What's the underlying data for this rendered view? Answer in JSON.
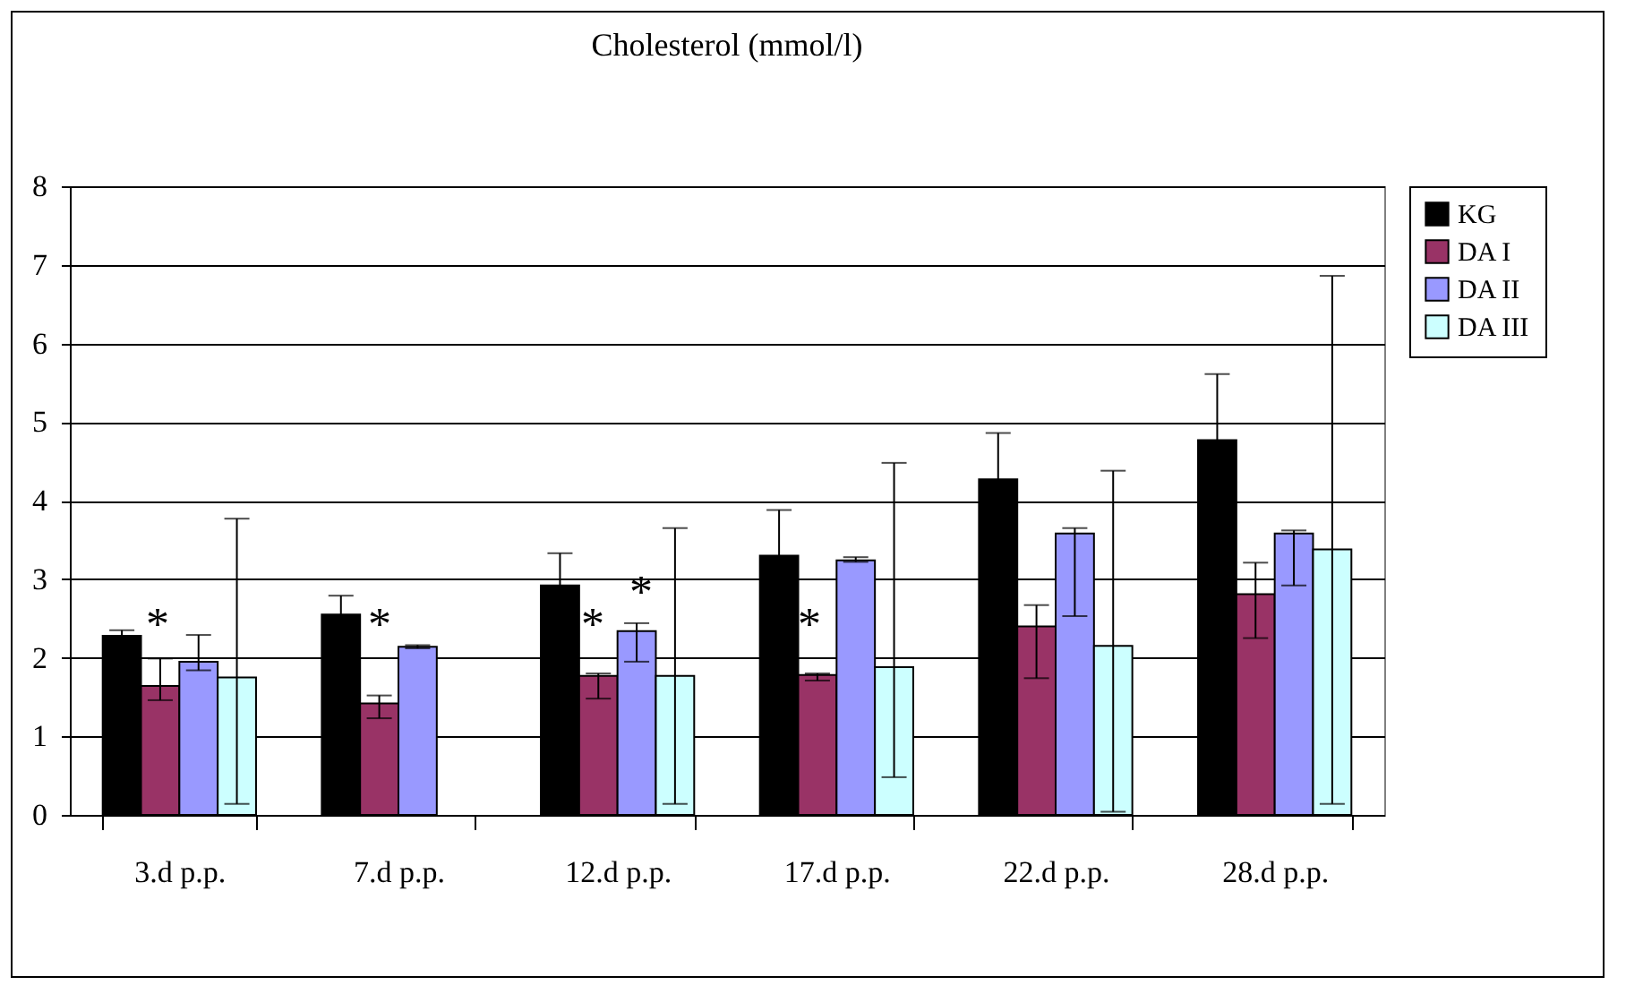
{
  "chart_data": {
    "type": "bar",
    "title": "Cholesterol (mmol/l)",
    "categories": [
      "3.d p.p.",
      "7.d p.p.",
      "12.d p.p.",
      "17.d p.p.",
      "22.d p.p.",
      "28.d p.p."
    ],
    "series": [
      {
        "name": "KG",
        "color": "#000000",
        "values": [
          2.28,
          2.55,
          2.92,
          3.3,
          4.27,
          4.77
        ],
        "errors": [
          0.07,
          0.24,
          0.41,
          0.58,
          0.59,
          0.84
        ]
      },
      {
        "name": "DA I",
        "color": "#993366",
        "values": [
          1.64,
          1.42,
          1.77,
          1.78,
          2.4,
          2.81
        ],
        "errors": [
          [
            1.46,
            1.99
          ],
          [
            1.23,
            1.52
          ],
          [
            1.48,
            1.8
          ],
          [
            1.71,
            1.8
          ],
          [
            1.74,
            2.67
          ],
          [
            2.25,
            3.21
          ]
        ]
      },
      {
        "name": "DA II",
        "color": "#9999ff",
        "values": [
          1.95,
          2.14,
          2.34,
          3.24,
          3.58,
          3.58
        ],
        "errors": [
          [
            1.84,
            2.29
          ],
          [
            2.12,
            2.16
          ],
          [
            1.95,
            2.44
          ],
          [
            3.22,
            3.28
          ],
          [
            2.53,
            3.65
          ],
          [
            2.92,
            3.62
          ]
        ]
      },
      {
        "name": "DA III",
        "color": "#ccffff",
        "values": [
          1.75,
          null,
          1.77,
          1.88,
          2.15,
          3.38
        ],
        "errors": [
          [
            0.14,
            3.77
          ],
          null,
          [
            0.14,
            3.65
          ],
          [
            0.48,
            4.48
          ],
          [
            0.04,
            4.38
          ],
          [
            0.14,
            6.86
          ]
        ]
      }
    ],
    "annotations": [
      "*",
      "*",
      "*",
      "*",
      "*"
    ],
    "ylim": [
      0,
      8
    ],
    "yticks": [
      0,
      1,
      2,
      3,
      4,
      5,
      6,
      7,
      8
    ],
    "grid": "y",
    "legend": "right"
  }
}
